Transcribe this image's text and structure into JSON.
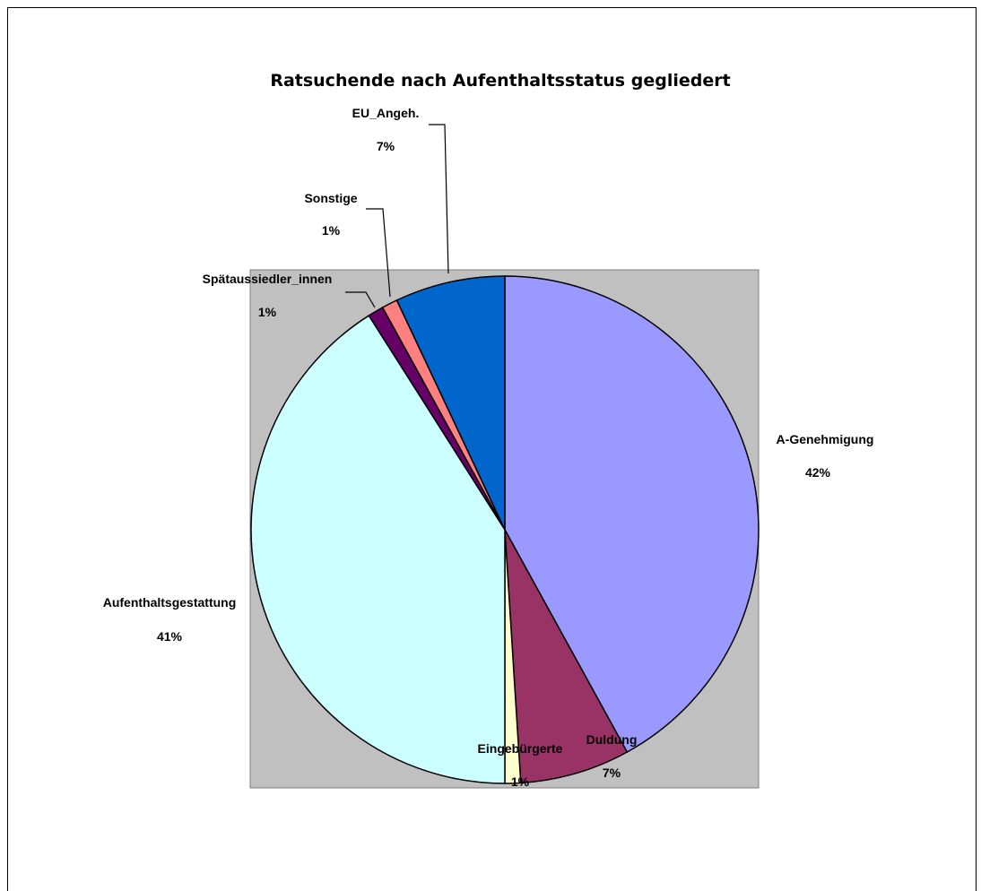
{
  "chart_data": {
    "type": "pie",
    "title": "Ratsuchende nach Aufenthaltsstatus gegliedert",
    "plot_background": "#c0c0c0",
    "slices": [
      {
        "name": "A-Genehmigung",
        "pct_label": "42%",
        "value": 42,
        "color": "#9999ff"
      },
      {
        "name": "Duldung",
        "pct_label": "7%",
        "value": 7,
        "color": "#993366"
      },
      {
        "name": "Eingebürgerte",
        "pct_label": "1%",
        "value": 1,
        "color": "#ffffcc"
      },
      {
        "name": "Aufenthaltsgestattung",
        "pct_label": "41%",
        "value": 41,
        "color": "#ccffff"
      },
      {
        "name": "Spätaussiedler_innen",
        "pct_label": "1%",
        "value": 1,
        "color": "#660066"
      },
      {
        "name": "Sonstige",
        "pct_label": "1%",
        "value": 1,
        "color": "#ff8080"
      },
      {
        "name": "EU_Angeh.",
        "pct_label": "7%",
        "value": 7,
        "color": "#0066cc"
      }
    ]
  }
}
